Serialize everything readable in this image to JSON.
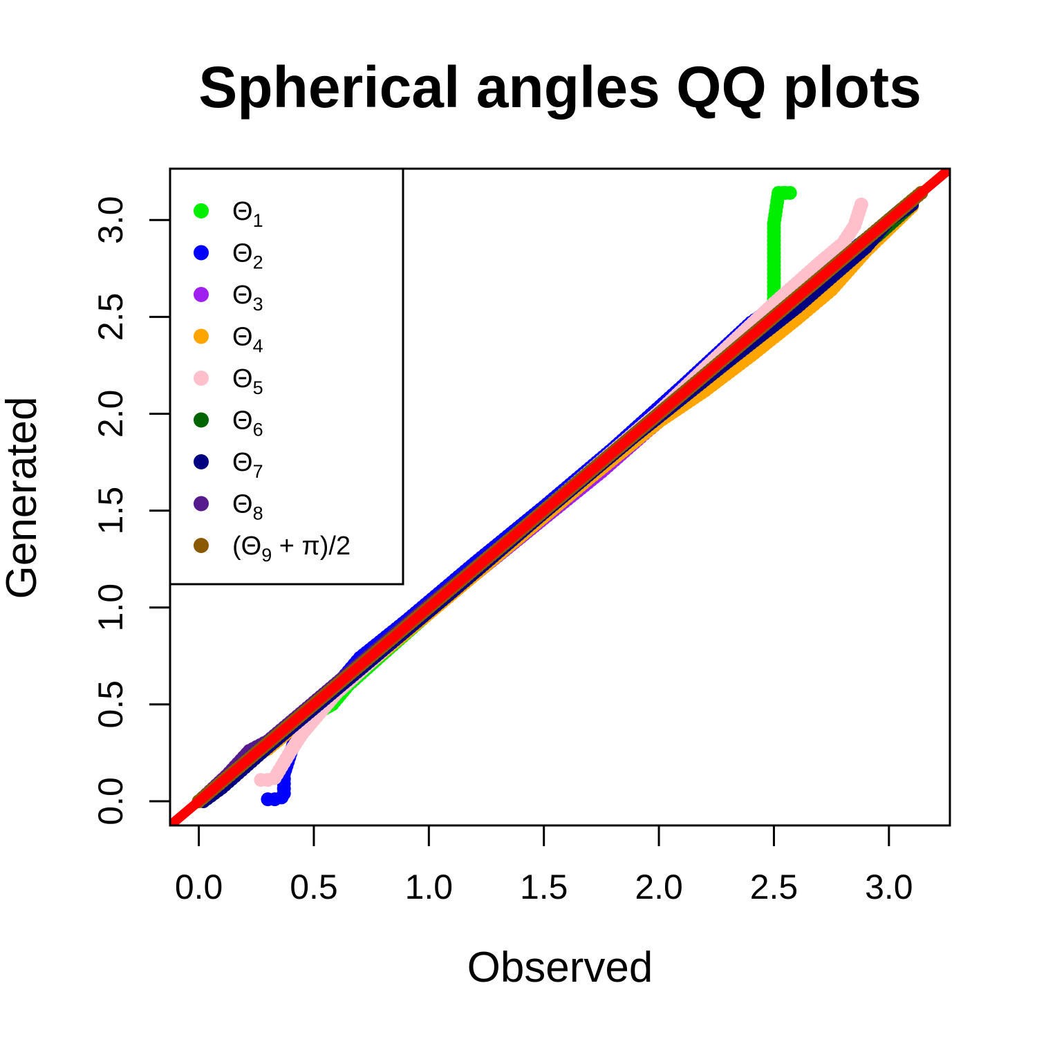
{
  "chart_data": {
    "type": "scatter",
    "title": "Spherical angles QQ plots",
    "xlabel": "Observed",
    "ylabel": "Generated",
    "xlim": [
      -0.125,
      3.265
    ],
    "ylim": [
      -0.125,
      3.265
    ],
    "xticks": [
      0.0,
      0.5,
      1.0,
      1.5,
      2.0,
      2.5,
      3.0
    ],
    "yticks": [
      0.0,
      0.5,
      1.0,
      1.5,
      2.0,
      2.5,
      3.0
    ],
    "xtick_labels": [
      "0.0",
      "0.5",
      "1.0",
      "1.5",
      "2.0",
      "2.5",
      "3.0"
    ],
    "ytick_labels": [
      "0.0",
      "0.5",
      "1.0",
      "1.5",
      "2.0",
      "2.5",
      "3.0"
    ],
    "legend_position": "top-left",
    "reference_line": {
      "slope": 1,
      "intercept": 0,
      "color": "#ff0000",
      "label": "y = x"
    },
    "series": [
      {
        "name": "Θ₁",
        "base": "Θ",
        "sub": "1",
        "color": "#00ee00",
        "points": [
          [
            0.02,
            0.01
          ],
          [
            0.2,
            0.19
          ],
          [
            0.4,
            0.38
          ],
          [
            0.58,
            0.5
          ],
          [
            0.65,
            0.6
          ],
          [
            0.8,
            0.76
          ],
          [
            1.0,
            0.97
          ],
          [
            1.3,
            1.28
          ],
          [
            1.6,
            1.58
          ],
          [
            1.9,
            1.89
          ],
          [
            2.2,
            2.2
          ],
          [
            2.45,
            2.48
          ],
          [
            2.5,
            2.55
          ],
          [
            2.5,
            2.98
          ],
          [
            2.52,
            3.14
          ],
          [
            2.54,
            3.14
          ],
          [
            2.55,
            3.14
          ],
          [
            2.57,
            3.14
          ]
        ]
      },
      {
        "name": "Θ₂",
        "base": "Θ",
        "sub": "2",
        "color": "#0000ff",
        "points": [
          [
            0.3,
            0.01
          ],
          [
            0.33,
            0.01
          ],
          [
            0.36,
            0.02
          ],
          [
            0.37,
            0.04
          ],
          [
            0.37,
            0.14
          ],
          [
            0.45,
            0.44
          ],
          [
            0.6,
            0.6
          ],
          [
            0.7,
            0.74
          ],
          [
            0.9,
            0.93
          ],
          [
            1.2,
            1.23
          ],
          [
            1.5,
            1.52
          ],
          [
            1.8,
            1.82
          ],
          [
            2.1,
            2.14
          ],
          [
            2.4,
            2.47
          ],
          [
            2.5,
            2.55
          ],
          [
            2.7,
            2.72
          ],
          [
            2.9,
            2.9
          ],
          [
            3.05,
            3.05
          ]
        ]
      },
      {
        "name": "Θ₃",
        "base": "Θ",
        "sub": "3",
        "color": "#a020f0",
        "points": [
          [
            0.02,
            0.02
          ],
          [
            0.2,
            0.22
          ],
          [
            0.35,
            0.33
          ],
          [
            0.6,
            0.58
          ],
          [
            0.9,
            0.88
          ],
          [
            1.2,
            1.17
          ],
          [
            1.5,
            1.46
          ],
          [
            1.75,
            1.7
          ],
          [
            1.95,
            1.91
          ],
          [
            2.1,
            2.06
          ],
          [
            2.3,
            2.26
          ],
          [
            2.6,
            2.56
          ],
          [
            2.9,
            2.87
          ],
          [
            3.1,
            3.08
          ]
        ]
      },
      {
        "name": "Θ₄",
        "base": "Θ",
        "sub": "4",
        "color": "#ffa500",
        "points": [
          [
            0.02,
            0.01
          ],
          [
            0.25,
            0.24
          ],
          [
            0.3,
            0.27
          ],
          [
            0.6,
            0.57
          ],
          [
            1.0,
            0.97
          ],
          [
            1.3,
            1.27
          ],
          [
            1.7,
            1.67
          ],
          [
            2.0,
            1.96
          ],
          [
            2.2,
            2.12
          ],
          [
            2.4,
            2.3
          ],
          [
            2.6,
            2.49
          ],
          [
            2.75,
            2.64
          ],
          [
            2.9,
            2.84
          ],
          [
            3.1,
            3.07
          ]
        ]
      },
      {
        "name": "Θ₅",
        "base": "Θ",
        "sub": "5",
        "color": "#ffc0cb",
        "points": [
          [
            0.27,
            0.11
          ],
          [
            0.3,
            0.11
          ],
          [
            0.33,
            0.12
          ],
          [
            0.35,
            0.16
          ],
          [
            0.37,
            0.2
          ],
          [
            0.4,
            0.26
          ],
          [
            0.45,
            0.35
          ],
          [
            0.5,
            0.42
          ],
          [
            0.6,
            0.56
          ],
          [
            1.0,
            0.99
          ],
          [
            1.5,
            1.5
          ],
          [
            2.0,
            2.01
          ],
          [
            2.5,
            2.57
          ],
          [
            2.7,
            2.78
          ],
          [
            2.8,
            2.88
          ],
          [
            2.85,
            2.97
          ],
          [
            2.88,
            3.08
          ]
        ]
      },
      {
        "name": "Θ₆",
        "base": "Θ",
        "sub": "6",
        "color": "#006400",
        "points": [
          [
            0.02,
            0.01
          ],
          [
            0.2,
            0.19
          ],
          [
            0.5,
            0.49
          ],
          [
            0.9,
            0.9
          ],
          [
            1.3,
            1.3
          ],
          [
            1.7,
            1.7
          ],
          [
            2.1,
            2.1
          ],
          [
            2.5,
            2.49
          ],
          [
            2.8,
            2.78
          ],
          [
            2.95,
            2.92
          ],
          [
            3.1,
            3.08
          ]
        ]
      },
      {
        "name": "Θ₇",
        "base": "Θ",
        "sub": "7",
        "color": "#000080",
        "points": [
          [
            0.02,
            0.0
          ],
          [
            0.1,
            0.07
          ],
          [
            0.3,
            0.28
          ],
          [
            0.7,
            0.68
          ],
          [
            1.1,
            1.08
          ],
          [
            1.5,
            1.49
          ],
          [
            1.9,
            1.89
          ],
          [
            2.3,
            2.27
          ],
          [
            2.6,
            2.55
          ],
          [
            2.9,
            2.86
          ],
          [
            3.0,
            3.0
          ],
          [
            3.1,
            3.08
          ]
        ]
      },
      {
        "name": "Θ₈",
        "base": "Θ",
        "sub": "8",
        "color": "#551a8b",
        "points": [
          [
            0.02,
            0.02
          ],
          [
            0.12,
            0.13
          ],
          [
            0.22,
            0.26
          ],
          [
            0.3,
            0.31
          ],
          [
            0.6,
            0.61
          ],
          [
            1.0,
            1.01
          ],
          [
            1.4,
            1.4
          ],
          [
            1.8,
            1.8
          ],
          [
            2.2,
            2.2
          ],
          [
            2.6,
            2.6
          ],
          [
            3.0,
            3.0
          ],
          [
            3.1,
            3.1
          ]
        ]
      },
      {
        "name": "(Θ₉ + π)/2",
        "base": "(Θ",
        "sub": "9",
        "tail": " + π)/2",
        "color": "#8b5a00",
        "points": [
          [
            0.0,
            0.0
          ],
          [
            0.15,
            0.15
          ],
          [
            0.35,
            0.35
          ],
          [
            0.55,
            0.55
          ],
          [
            0.8,
            0.8
          ],
          [
            1.1,
            1.1
          ],
          [
            1.4,
            1.4
          ],
          [
            1.7,
            1.7
          ],
          [
            2.0,
            2.0
          ],
          [
            2.3,
            2.3
          ],
          [
            2.6,
            2.6
          ],
          [
            2.9,
            2.9
          ],
          [
            3.14,
            3.14
          ]
        ]
      }
    ]
  }
}
